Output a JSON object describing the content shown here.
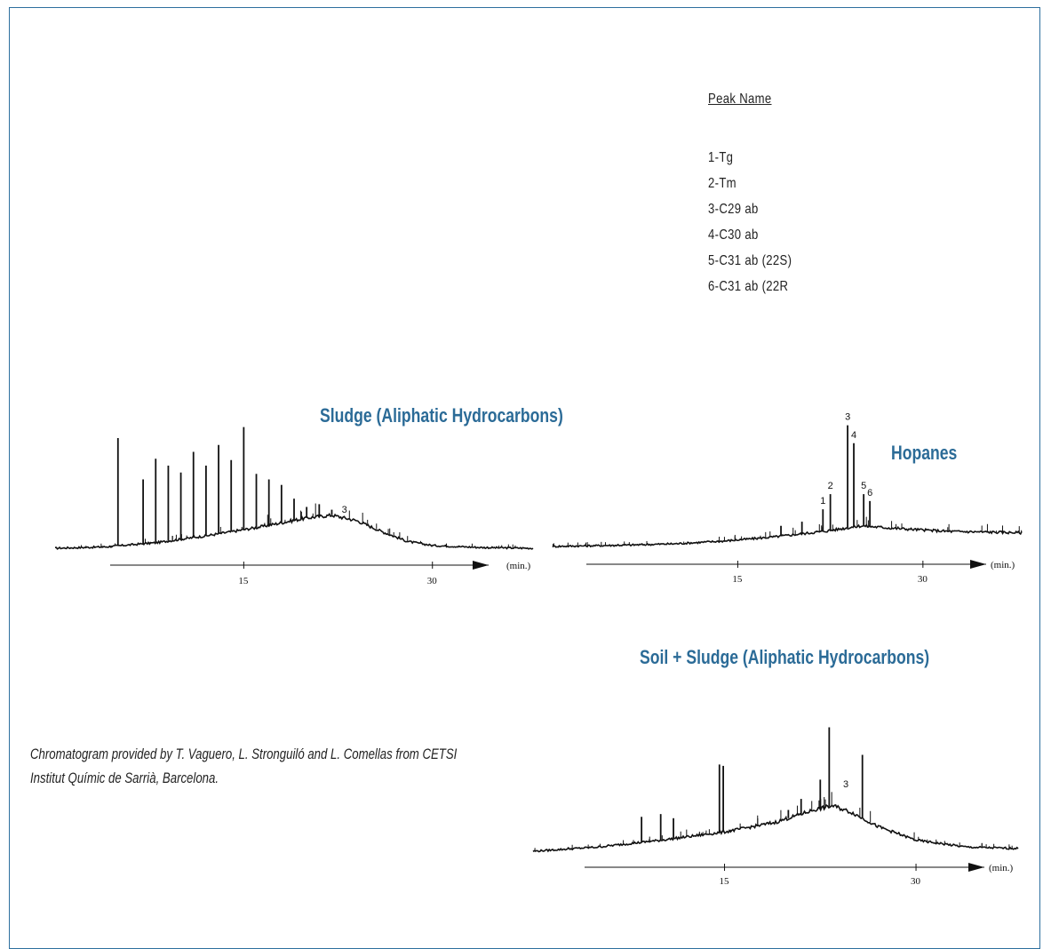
{
  "legend": {
    "title": "Peak Name",
    "items": [
      "1-Tg",
      "2-Tm",
      "3-C29 ab",
      "4-C30 ab",
      "5-C31 ab (22S)",
      "6-C31 ab (22R"
    ]
  },
  "credit": {
    "line1": "Chromatogram provided by T. Vaguero, L. Stronguiló and L. Comellas from CETSI",
    "line2": "Institut Químic de Sarrià, Barcelona."
  },
  "colors": {
    "title": "#2b6b97",
    "frame": "#2d6f9e",
    "trace": "#111111"
  },
  "chart_data": [
    {
      "type": "line",
      "title": "Sludge (Aliphatic Hydrocarbons)",
      "xlabel": "(min.)",
      "xticks": [
        15,
        30
      ],
      "xlim": [
        0,
        38
      ],
      "peak_labels": [
        {
          "label": "3",
          "x": 23
        }
      ],
      "baseline": [
        [
          0,
          0
        ],
        [
          4,
          1
        ],
        [
          8,
          4
        ],
        [
          12,
          9
        ],
        [
          16,
          15
        ],
        [
          20,
          22
        ],
        [
          22,
          24
        ],
        [
          24,
          20
        ],
        [
          26,
          12
        ],
        [
          28,
          5
        ],
        [
          30,
          2
        ],
        [
          34,
          0.5
        ],
        [
          38,
          0
        ]
      ],
      "peaks": [
        [
          5,
          80
        ],
        [
          7,
          50
        ],
        [
          8,
          65
        ],
        [
          9,
          60
        ],
        [
          10,
          55
        ],
        [
          11,
          70
        ],
        [
          12,
          60
        ],
        [
          13,
          75
        ],
        [
          14,
          64
        ],
        [
          15,
          88
        ],
        [
          16,
          54
        ],
        [
          17,
          50
        ],
        [
          18,
          46
        ],
        [
          19,
          36
        ],
        [
          20,
          30
        ],
        [
          21,
          32
        ],
        [
          22,
          28
        ],
        [
          23,
          22
        ]
      ]
    },
    {
      "type": "line",
      "title": "Hopanes",
      "xlabel": "(min.)",
      "xticks": [
        15,
        30
      ],
      "xlim": [
        0,
        38
      ],
      "peak_labels": [
        {
          "label": "1",
          "x": 21.9
        },
        {
          "label": "2",
          "x": 22.5
        },
        {
          "label": "3",
          "x": 23.9
        },
        {
          "label": "4",
          "x": 24.4
        },
        {
          "label": "5",
          "x": 25.2
        },
        {
          "label": "6",
          "x": 25.7
        }
      ],
      "baseline": [
        [
          0,
          0
        ],
        [
          6,
          1
        ],
        [
          10,
          2
        ],
        [
          14,
          4
        ],
        [
          18,
          7
        ],
        [
          22,
          11
        ],
        [
          25,
          15
        ],
        [
          28,
          13
        ],
        [
          32,
          11
        ],
        [
          38,
          10
        ]
      ],
      "peaks": [
        [
          21.9,
          27
        ],
        [
          22.5,
          38
        ],
        [
          23.9,
          88
        ],
        [
          24.4,
          75
        ],
        [
          25.2,
          38
        ],
        [
          25.7,
          33
        ],
        [
          18.5,
          15
        ],
        [
          20.2,
          18
        ]
      ]
    },
    {
      "type": "line",
      "title": "Soil + Sludge (Aliphatic Hydrocarbons)",
      "xlabel": "(min.)",
      "xticks": [
        15,
        30
      ],
      "xlim": [
        0,
        38
      ],
      "peak_labels": [
        {
          "label": "3",
          "x": 24.5
        }
      ],
      "baseline": [
        [
          0,
          0
        ],
        [
          5,
          3
        ],
        [
          10,
          8
        ],
        [
          15,
          14
        ],
        [
          19,
          21
        ],
        [
          22,
          30
        ],
        [
          23.5,
          33
        ],
        [
          25,
          28
        ],
        [
          27,
          18
        ],
        [
          30,
          8
        ],
        [
          34,
          3
        ],
        [
          38,
          2
        ]
      ],
      "peaks": [
        [
          8.5,
          25
        ],
        [
          10,
          27
        ],
        [
          11,
          24
        ],
        [
          14.6,
          63
        ],
        [
          14.9,
          62
        ],
        [
          22.5,
          52
        ],
        [
          23.2,
          90
        ],
        [
          25.8,
          70
        ],
        [
          21,
          38
        ],
        [
          20,
          30
        ]
      ]
    }
  ]
}
